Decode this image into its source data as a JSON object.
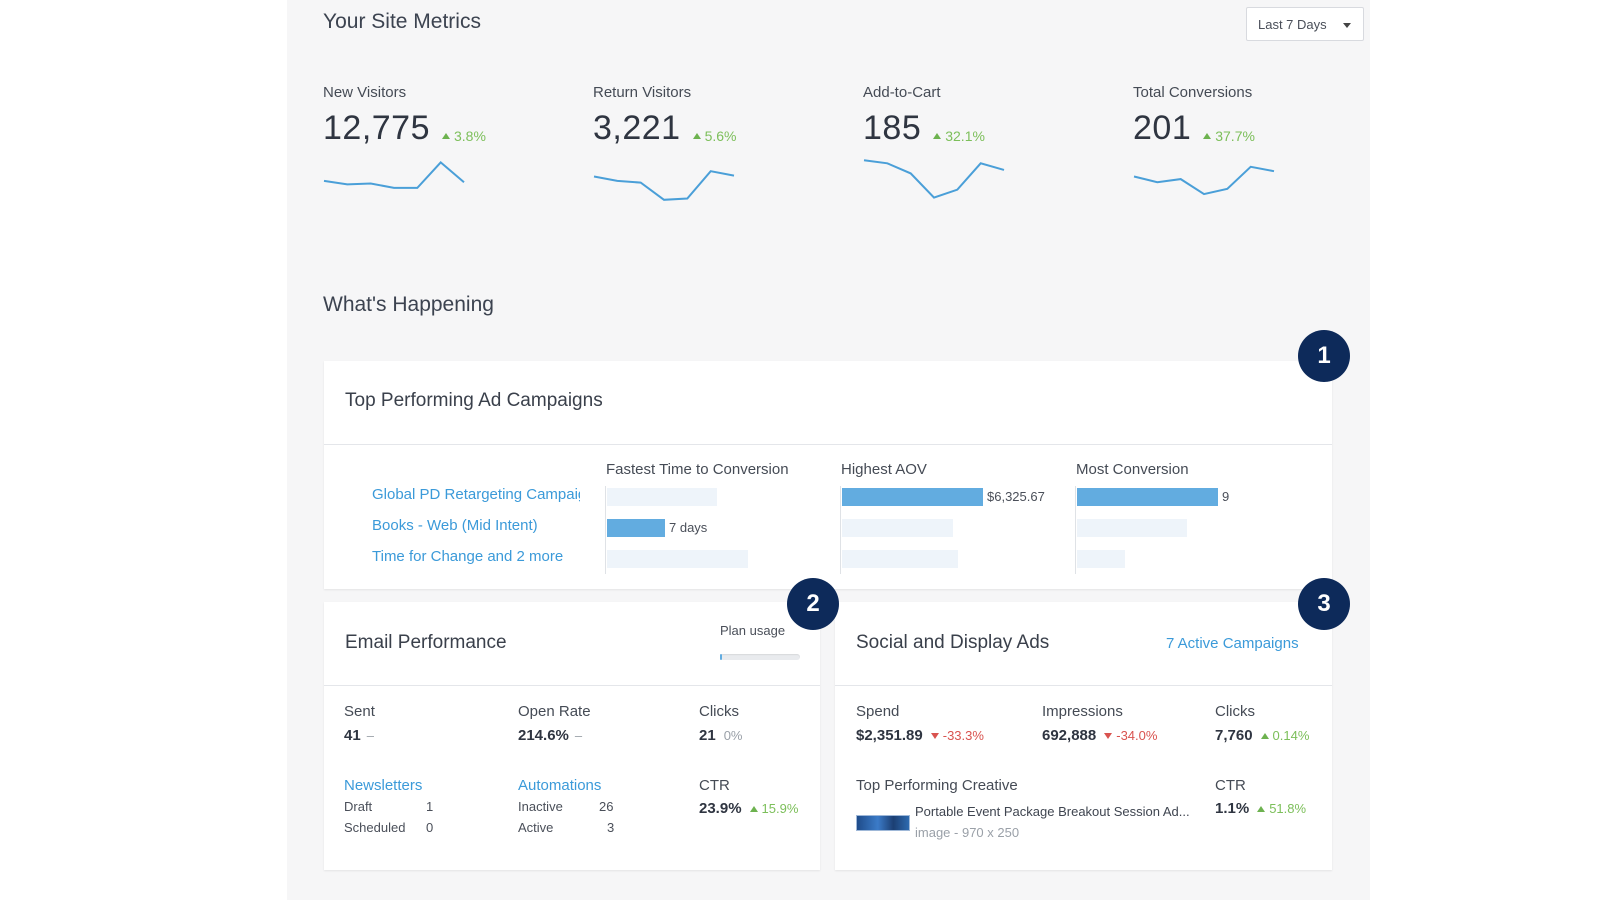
{
  "site_metrics": {
    "title": "Your Site Metrics",
    "range_select": "Last 7 Days",
    "metrics": [
      {
        "label": "New Visitors",
        "value": "12,775",
        "delta": "3.8%",
        "trend": [
          0.52,
          0.6,
          0.58,
          0.68,
          0.68,
          0.1,
          0.55
        ]
      },
      {
        "label": "Return Visitors",
        "value": "3,221",
        "delta": "5.6%",
        "trend": [
          0.42,
          0.52,
          0.56,
          0.95,
          0.92,
          0.3,
          0.4
        ]
      },
      {
        "label": "Add-to-Cart",
        "value": "185",
        "delta": "32.1%",
        "trend": [
          0.05,
          0.12,
          0.35,
          0.9,
          0.72,
          0.12,
          0.27
        ]
      },
      {
        "label": "Total Conversions",
        "value": "201",
        "delta": "37.7%",
        "trend": [
          0.42,
          0.55,
          0.48,
          0.82,
          0.7,
          0.2,
          0.3
        ]
      }
    ]
  },
  "whats_happening": {
    "title": "What's Happening"
  },
  "badges": [
    "1",
    "2",
    "3"
  ],
  "ad_campaigns": {
    "title": "Top Performing Ad Campaigns",
    "campaigns": [
      "Global PD Retargeting Campaign",
      "Books - Web (Mid Intent)",
      "Time for Change and 2 more"
    ],
    "columns": [
      {
        "header": "Fastest Time to Conversion",
        "bars": [
          {
            "fraction": 0.0,
            "bg": 0.78,
            "label": ""
          },
          {
            "fraction": 0.41,
            "bg": 0.41,
            "label": "7 days"
          },
          {
            "fraction": 0.0,
            "bg": 1.0,
            "label": ""
          }
        ]
      },
      {
        "header": "Highest AOV",
        "bars": [
          {
            "fraction": 1.0,
            "bg": 1.0,
            "label": "$6,325.67"
          },
          {
            "fraction": 0.0,
            "bg": 0.79,
            "label": ""
          },
          {
            "fraction": 0.0,
            "bg": 0.82,
            "label": ""
          }
        ]
      },
      {
        "header": "Most Conversion",
        "bars": [
          {
            "fraction": 1.0,
            "bg": 1.0,
            "label": "9"
          },
          {
            "fraction": 0.0,
            "bg": 0.78,
            "label": ""
          },
          {
            "fraction": 0.0,
            "bg": 0.34,
            "label": ""
          }
        ]
      }
    ]
  },
  "email": {
    "title": "Email Performance",
    "plan_usage_label": "Plan usage",
    "plan_usage_fraction": 0.02,
    "sent_label": "Sent",
    "sent_value": "41",
    "sent_delta": "–",
    "open_rate_label": "Open Rate",
    "open_rate_value": "214.6%",
    "open_rate_delta": "–",
    "clicks_label": "Clicks",
    "clicks_value": "21",
    "clicks_delta": "0%",
    "newsletters_label": "Newsletters",
    "newsletters": [
      {
        "label": "Draft",
        "count": "1"
      },
      {
        "label": "Scheduled",
        "count": "0"
      }
    ],
    "automations_label": "Automations",
    "automations": [
      {
        "label": "Inactive",
        "count": "26"
      },
      {
        "label": "Active",
        "count": "3"
      }
    ],
    "ctr_label": "CTR",
    "ctr_value": "23.9%",
    "ctr_delta": "15.9%"
  },
  "social": {
    "title": "Social and Display Ads",
    "active_campaigns_link": "7 Active Campaigns",
    "spend_label": "Spend",
    "spend_value": "$2,351.89",
    "spend_delta": "-33.3%",
    "impressions_label": "Impressions",
    "impressions_value": "692,888",
    "impressions_delta": "-34.0%",
    "clicks_label": "Clicks",
    "clicks_value": "7,760",
    "clicks_delta": "0.14%",
    "top_creative_label": "Top Performing Creative",
    "creative_title": "Portable Event Package Breakout Session Ad...",
    "creative_sub": "image - 970 x 250",
    "ctr_label": "CTR",
    "ctr_value": "1.1%",
    "ctr_delta": "51.8%"
  },
  "colors": {
    "accent": "#3b9ad9",
    "bar": "#62ace0",
    "badge": "#0d2a5a",
    "positive": "#7cbf5a",
    "negative": "#d9534f"
  }
}
